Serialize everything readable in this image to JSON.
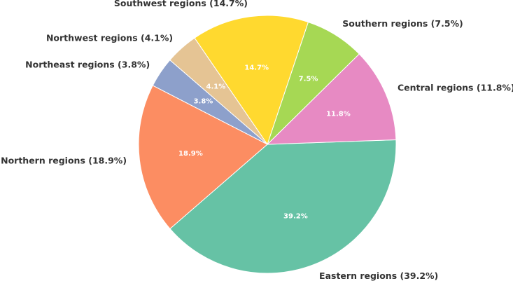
{
  "chart_data": {
    "type": "pie",
    "categories": [
      "Eastern regions (39.2%)",
      "Central regions (11.8%)",
      "Southern regions (7.5%)",
      "Southwest regions (14.7%)",
      "Northwest regions (4.1%)",
      "Northeast regions (3.8%)",
      "Northern regions (18.9%)"
    ],
    "values": [
      39.2,
      11.8,
      7.5,
      14.7,
      4.1,
      3.8,
      18.9
    ],
    "value_labels": [
      "39.2%",
      "11.8%",
      "7.5%",
      "14.7%",
      "4.1%",
      "3.8%",
      "18.9%"
    ],
    "colors": [
      "#66c2a5",
      "#e78ac3",
      "#a6d854",
      "#ffd92f",
      "#e5c494",
      "#8da0cb",
      "#fc8d62"
    ]
  }
}
